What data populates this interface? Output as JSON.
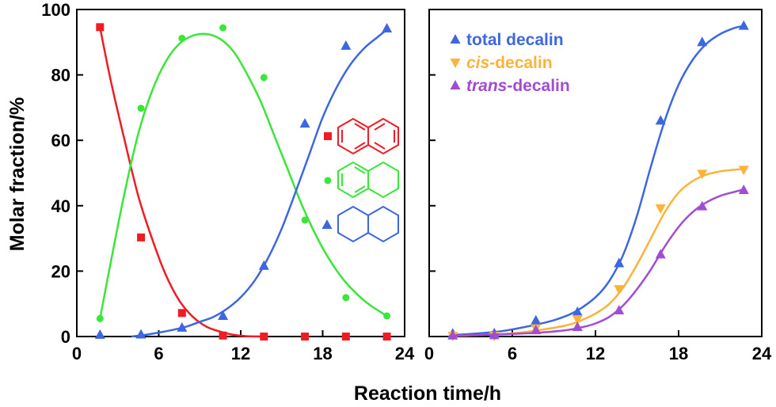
{
  "chart_data": [
    {
      "type": "scatter",
      "xlabel": "Reaction time/h",
      "ylabel": "Molar fraction/%",
      "xlim": [
        0,
        24
      ],
      "ylim": [
        0,
        100
      ],
      "xticks": [
        "0",
        "6",
        "12",
        "18",
        "24"
      ],
      "yticks": [
        "0",
        "20",
        "40",
        "60",
        "80",
        "100"
      ],
      "series": [
        {
          "marker": "square",
          "color": "#ef1c24",
          "x": [
            1.7,
            4.7,
            7.7,
            10.7,
            13.7,
            16.7,
            19.7,
            22.7
          ],
          "y": [
            94.6,
            30.3,
            7.2,
            0.3,
            0,
            0,
            0,
            0
          ],
          "fit": [
            [
              1.7,
              94.5
            ],
            [
              2.5,
              78
            ],
            [
              3.5,
              60
            ],
            [
              4.5,
              43
            ],
            [
              5.5,
              30
            ],
            [
              6.5,
              19
            ],
            [
              7.5,
              11
            ],
            [
              8.5,
              6
            ],
            [
              9.5,
              3
            ],
            [
              10.5,
              1.5
            ],
            [
              11.5,
              0.5
            ],
            [
              12.5,
              0.1
            ],
            [
              13.5,
              0
            ]
          ],
          "structure": "naphthalene"
        },
        {
          "marker": "circle",
          "color": "#3ae63a",
          "x": [
            1.7,
            4.7,
            7.7,
            10.7,
            13.7,
            16.7,
            19.7,
            22.7
          ],
          "y": [
            5.5,
            69.8,
            91.2,
            94.4,
            79.2,
            35.6,
            11.9,
            6.3
          ],
          "fit": [
            [
              1.7,
              5.5
            ],
            [
              2.5,
              23
            ],
            [
              3.5,
              44
            ],
            [
              4.5,
              62
            ],
            [
              5.5,
              75
            ],
            [
              6.5,
              84
            ],
            [
              7.5,
              89.5
            ],
            [
              8.5,
              92
            ],
            [
              9.5,
              92.5
            ],
            [
              10.5,
              91
            ],
            [
              11.5,
              87
            ],
            [
              12.5,
              80
            ],
            [
              13.5,
              71.5
            ],
            [
              14.5,
              61
            ],
            [
              15.5,
              50.5
            ],
            [
              16.5,
              40
            ],
            [
              17.5,
              31
            ],
            [
              18.5,
              23.5
            ],
            [
              19.5,
              17.5
            ],
            [
              20.5,
              13
            ],
            [
              21.5,
              9.5
            ],
            [
              22.7,
              6.3
            ]
          ],
          "structure": "tetralin"
        },
        {
          "marker": "triangle-up",
          "color": "#3d67e0",
          "x": [
            1.7,
            4.7,
            7.7,
            10.7,
            13.7,
            16.7,
            19.7,
            22.7
          ],
          "y": [
            0.5,
            0.6,
            2.7,
            6.3,
            21.6,
            65.1,
            88.9,
            94.2
          ],
          "fit": [
            [
              4,
              0
            ],
            [
              5,
              0.5
            ],
            [
              6,
              1.2
            ],
            [
              7,
              2
            ],
            [
              8,
              3
            ],
            [
              9,
              4.5
            ],
            [
              10,
              6
            ],
            [
              11,
              8.5
            ],
            [
              12,
              12
            ],
            [
              13,
              17
            ],
            [
              14,
              24
            ],
            [
              15,
              33
            ],
            [
              16,
              44
            ],
            [
              17,
              55.5
            ],
            [
              18,
              67
            ],
            [
              19,
              76
            ],
            [
              20,
              83
            ],
            [
              21,
              88
            ],
            [
              22,
              91.5
            ],
            [
              22.7,
              93.8
            ]
          ],
          "structure": "decalin"
        }
      ]
    },
    {
      "type": "scatter",
      "xlabel": "Reaction time/h",
      "xlim": [
        0,
        24
      ],
      "ylim": [
        0,
        100
      ],
      "xticks": [
        "0",
        "6",
        "12",
        "18",
        "24"
      ],
      "legend_position": "top-left",
      "series": [
        {
          "name": "total decalin",
          "name_parts": [
            "total decalin"
          ],
          "marker": "triangle-up",
          "color": "#3d67e0",
          "x": [
            1.7,
            4.7,
            7.7,
            10.7,
            13.7,
            16.7,
            19.7,
            22.7
          ],
          "y": [
            0.9,
            1.0,
            4.9,
            7.5,
            22.4,
            66.0,
            90.0,
            95.0
          ],
          "fit": [
            [
              1.7,
              0.5
            ],
            [
              3,
              0.8
            ],
            [
              5,
              1.5
            ],
            [
              7,
              3
            ],
            [
              9,
              5
            ],
            [
              10.5,
              7.5
            ],
            [
              12,
              12
            ],
            [
              13,
              17
            ],
            [
              14,
              25
            ],
            [
              15,
              37
            ],
            [
              16,
              52
            ],
            [
              17,
              66
            ],
            [
              18,
              77
            ],
            [
              19,
              84.5
            ],
            [
              20,
              89.5
            ],
            [
              21,
              92.5
            ],
            [
              22,
              94.3
            ],
            [
              22.7,
              95
            ]
          ]
        },
        {
          "name": "cis-decalin",
          "name_parts": [
            "cis",
            "-decalin"
          ],
          "marker": "triangle-down",
          "color": "#fbb33b",
          "x": [
            1.7,
            4.7,
            7.7,
            10.7,
            13.7,
            16.7,
            19.7,
            22.7
          ],
          "y": [
            0.2,
            0.2,
            2.5,
            5.3,
            14.5,
            39.2,
            49.8,
            51.0
          ],
          "fit": [
            [
              1.7,
              0.2
            ],
            [
              4,
              0.5
            ],
            [
              6,
              1
            ],
            [
              8,
              2
            ],
            [
              10,
              3.5
            ],
            [
              11,
              5
            ],
            [
              12,
              7
            ],
            [
              13,
              10
            ],
            [
              14,
              15
            ],
            [
              15,
              22
            ],
            [
              16,
              30
            ],
            [
              17,
              38
            ],
            [
              18,
              44
            ],
            [
              19,
              47.5
            ],
            [
              20,
              49.5
            ],
            [
              21,
              50.5
            ],
            [
              22,
              51
            ],
            [
              22.7,
              51.2
            ]
          ]
        },
        {
          "name": "trans-decalin",
          "name_parts": [
            "trans",
            "-decalin"
          ],
          "marker": "triangle-up",
          "color": "#a24bd3",
          "x": [
            1.7,
            4.7,
            7.7,
            10.7,
            13.7,
            16.7,
            19.7,
            22.7
          ],
          "y": [
            0.3,
            0.4,
            1.9,
            2.9,
            8.0,
            25.1,
            39.8,
            44.8
          ],
          "fit": [
            [
              1.7,
              0.3
            ],
            [
              4,
              0.5
            ],
            [
              6,
              0.8
            ],
            [
              8,
              1.2
            ],
            [
              10,
              2
            ],
            [
              11,
              2.8
            ],
            [
              12,
              4
            ],
            [
              13,
              6
            ],
            [
              14,
              9.5
            ],
            [
              15,
              14.5
            ],
            [
              16,
              20.5
            ],
            [
              17,
              27.5
            ],
            [
              18,
              33.5
            ],
            [
              19,
              38
            ],
            [
              20,
              41
            ],
            [
              21,
              43
            ],
            [
              22,
              44.2
            ],
            [
              22.7,
              45
            ]
          ]
        }
      ]
    }
  ]
}
